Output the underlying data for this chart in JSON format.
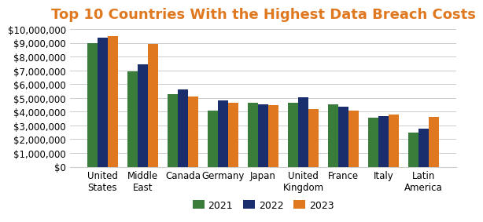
{
  "title": "Top 10 Countries With the Highest Data Breach Costs",
  "categories": [
    "United\nStates",
    "Middle\nEast",
    "Canada",
    "Germany",
    "Japan",
    "United\nKingdom",
    "France",
    "Italy",
    "Latin\nAmerica"
  ],
  "series": {
    "2021": [
      9000000,
      6900000,
      5300000,
      4050000,
      4650000,
      4650000,
      4550000,
      3550000,
      2500000
    ],
    "2022": [
      9350000,
      7450000,
      5600000,
      4800000,
      4550000,
      5050000,
      4350000,
      3700000,
      2750000
    ],
    "2023": [
      9480000,
      8950000,
      5100000,
      4650000,
      4500000,
      4200000,
      4050000,
      3800000,
      3650000
    ]
  },
  "colors": {
    "2021": "#3a7d3a",
    "2022": "#1a2e6e",
    "2023": "#e07820"
  },
  "ylim": [
    0,
    10000000
  ],
  "yticks": [
    0,
    1000000,
    2000000,
    3000000,
    4000000,
    5000000,
    6000000,
    7000000,
    8000000,
    9000000,
    10000000
  ],
  "background_color": "#ffffff",
  "title_color": "#e07820",
  "title_fontsize": 13,
  "tick_label_fontsize": 8.5,
  "legend_fontsize": 9,
  "bar_width": 0.25
}
